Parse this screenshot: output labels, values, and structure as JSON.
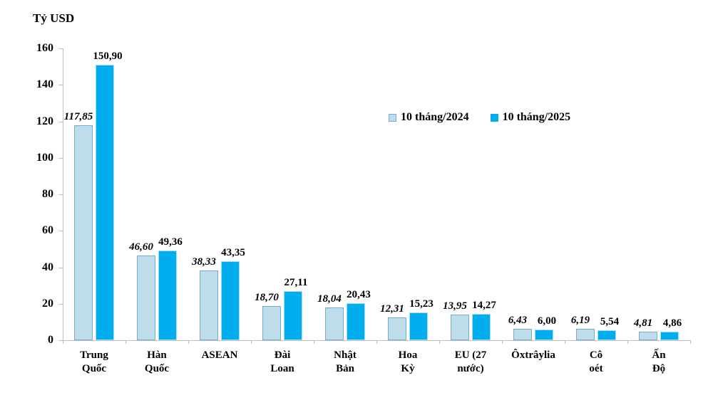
{
  "title": "Tỷ USD",
  "chart_data": {
    "type": "bar",
    "title": "Tỷ USD",
    "ylabel": "Tỷ USD",
    "ylim": [
      0,
      160
    ],
    "ytick_step": 20,
    "yticks": [
      "0",
      "20",
      "40",
      "60",
      "80",
      "100",
      "120",
      "140",
      "160"
    ],
    "grid": false,
    "legend_position": "upper-center-right",
    "axis_color": "#BFBFBF",
    "text_color": "#000000",
    "categories": [
      "Trung\nQuốc",
      "Hàn\nQuốc",
      "ASEAN",
      "Đài\nLoan",
      "Nhật\nBản",
      "Hoa\nKỳ",
      "EU (27\nnước)",
      "Ôxtrâylia",
      "Cô\noét",
      "Ấn\nĐộ"
    ],
    "series": [
      {
        "name": "10 tháng/2024",
        "values": [
          117.85,
          46.6,
          38.33,
          18.7,
          18.04,
          12.31,
          13.95,
          6.43,
          6.19,
          4.81
        ],
        "labels": [
          "117,85",
          "46,60",
          "38,33",
          "18,70",
          "18,04",
          "12,31",
          "13,95",
          "6,43",
          "6,19",
          "4,81"
        ],
        "fill": "#BFDCEB",
        "border": "#76ADD4",
        "label_style": "bold-italic"
      },
      {
        "name": "10 tháng/2025",
        "values": [
          150.9,
          49.36,
          43.35,
          27.11,
          20.43,
          15.23,
          14.27,
          6.0,
          5.54,
          4.86
        ],
        "labels": [
          "150,90",
          "49,36",
          "43,35",
          "27,11",
          "20,43",
          "15,23",
          "14,27",
          "6,00",
          "5,54",
          "4,86"
        ],
        "fill": "#00AEEF",
        "border": "#A8DCF2",
        "label_style": "bold"
      }
    ]
  }
}
